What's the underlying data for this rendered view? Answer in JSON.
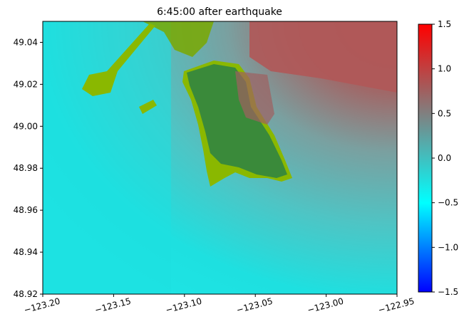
{
  "chart_data": {
    "type": "heatmap",
    "title": "6:45:00 after earthquake",
    "xlabel": "",
    "ylabel": "",
    "xlim": [
      -123.2,
      -122.95
    ],
    "ylim": [
      48.92,
      49.05
    ],
    "x_ticks": [
      -123.2,
      -123.15,
      -123.1,
      -123.05,
      -123.0,
      -122.95
    ],
    "x_tick_labels": [
      "−123.20",
      "−123.15",
      "−123.10",
      "−123.05",
      "−123.00",
      "−122.95"
    ],
    "y_ticks": [
      48.92,
      48.94,
      48.96,
      48.98,
      49.0,
      49.02,
      49.04
    ],
    "y_tick_labels": [
      "48.92",
      "48.94",
      "48.96",
      "48.98",
      "49.00",
      "49.02",
      "49.04"
    ],
    "colorbar": {
      "range": [
        -1.5,
        1.5
      ],
      "ticks": [
        -1.5,
        -1.0,
        -0.5,
        0.0,
        0.5,
        1.0,
        1.5
      ],
      "tick_labels": [
        "−1.5",
        "−1.0",
        "−0.5",
        "0.0",
        "0.5",
        "1.0",
        "1.5"
      ],
      "colors": [
        "#0000ff",
        "#00ffff",
        "#808080",
        "#ff0000"
      ]
    },
    "colors": {
      "water_low": "#1ee0e0",
      "water_mid": "#5fb8b8",
      "water_high": "#b85c5c",
      "land": "#3a8a3a",
      "land_wet": "#8ab800"
    }
  }
}
